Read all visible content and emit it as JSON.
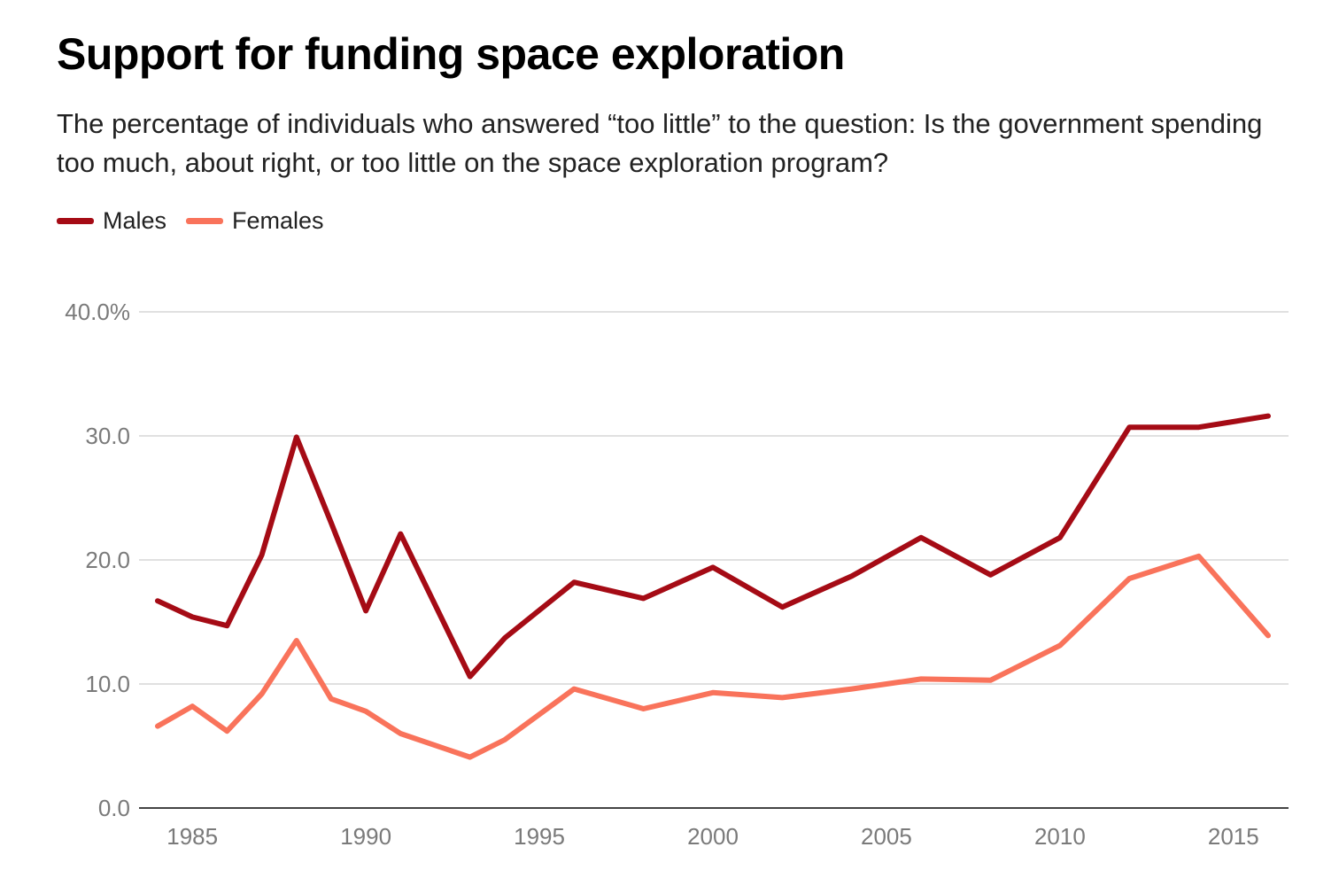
{
  "chart_data": {
    "type": "line",
    "title": "Support for funding space exploration",
    "subtitle": "The percentage of individuals who answered “too little” to the question: Is the government spending too much, about right, or too little on the space exploration program?",
    "xlabel": "",
    "ylabel": "",
    "ylim": [
      0,
      40
    ],
    "xlim": [
      1984,
      2016
    ],
    "yticks": [
      0,
      10,
      20,
      30,
      40
    ],
    "ytick_labels": [
      "0.0",
      "10.0",
      "20.0",
      "30.0",
      "40.0%"
    ],
    "xticks": [
      1985,
      1990,
      1995,
      2000,
      2005,
      2010,
      2015
    ],
    "xtick_labels": [
      "1985",
      "1990",
      "1995",
      "2000",
      "2005",
      "2010",
      "2015"
    ],
    "grid": true,
    "legend_position": "top-left",
    "series": [
      {
        "name": "Males",
        "color": "#a50b15",
        "x": [
          1984,
          1985,
          1986,
          1987,
          1988,
          1989,
          1990,
          1991,
          1993,
          1994,
          1996,
          1998,
          2000,
          2002,
          2004,
          2006,
          2008,
          2010,
          2012,
          2014,
          2016
        ],
        "values": [
          16.7,
          15.4,
          14.7,
          20.4,
          29.9,
          23.0,
          15.9,
          22.1,
          10.6,
          13.7,
          18.2,
          16.9,
          19.4,
          16.2,
          18.7,
          21.8,
          18.8,
          21.8,
          30.7,
          30.7,
          31.6
        ]
      },
      {
        "name": "Females",
        "color": "#f9735b",
        "x": [
          1984,
          1985,
          1986,
          1987,
          1988,
          1989,
          1990,
          1991,
          1993,
          1994,
          1996,
          1998,
          2000,
          2002,
          2004,
          2006,
          2008,
          2010,
          2012,
          2014,
          2016
        ],
        "values": [
          6.6,
          8.2,
          6.2,
          9.2,
          13.5,
          8.8,
          7.8,
          6.0,
          4.1,
          5.5,
          9.6,
          8.0,
          9.3,
          8.9,
          9.6,
          10.4,
          10.3,
          13.1,
          18.5,
          20.3,
          13.9
        ]
      }
    ]
  }
}
